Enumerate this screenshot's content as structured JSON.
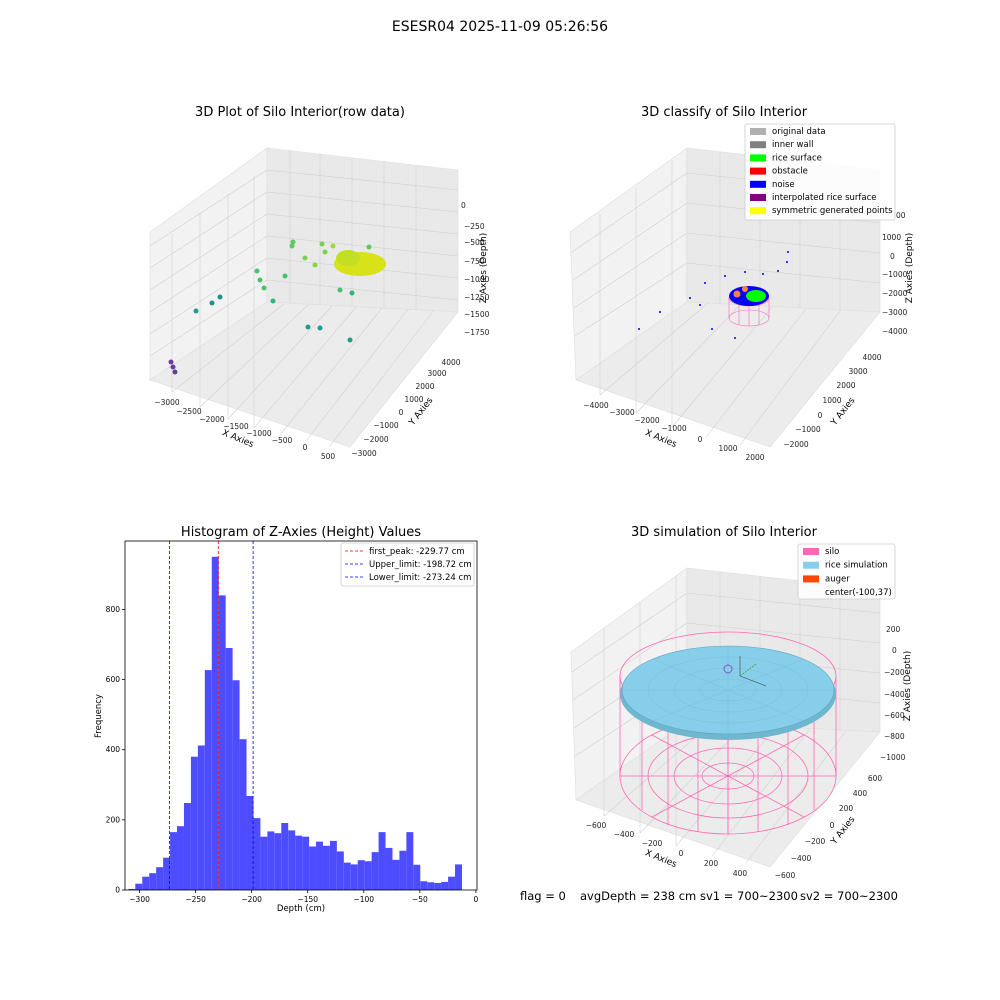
{
  "suptitle": "ESESR04 2025-11-09 05:26:56",
  "footer": {
    "flag": "flag = 0",
    "avg_depth": "avgDepth = 238 cm",
    "sv1": "sv1 = 700~2300",
    "sv2": "sv2 = 700~2300"
  },
  "chart_data": [
    {
      "type": "scatter",
      "projection": "3d",
      "title": "3D Plot of Silo Interior(row data)",
      "xlabel": "X Axies",
      "ylabel": "Y Axies",
      "zlabel": "Z Axies (Depth)",
      "x_ticks": [
        "−3000",
        "−2500",
        "−2000",
        "−1500",
        "−1000",
        "−500",
        "0",
        "500"
      ],
      "y_ticks": [
        "−3000",
        "−2000",
        "−1000",
        "0",
        "1000",
        "2000",
        "3000",
        "4000"
      ],
      "z_ticks": [
        "0",
        "−250",
        "−500",
        "−750",
        "−1000",
        "−1250",
        "−1500",
        "−1750"
      ],
      "colormap": "viridis",
      "grid": true
    },
    {
      "type": "scatter",
      "projection": "3d",
      "title": "3D classify of Silo Interior",
      "xlabel": "X Axies",
      "ylabel": "Y Axies",
      "zlabel": "Z Axies (Depth)",
      "x_ticks": [
        "−4000",
        "−3000",
        "−2000",
        "−1000",
        "0",
        "1000",
        "2000"
      ],
      "y_ticks": [
        "−2000",
        "−1000",
        "0",
        "1000",
        "2000",
        "3000",
        "4000"
      ],
      "z_ticks": [
        "1000",
        "0",
        "−1000",
        "−2000",
        "−3000",
        "−4000"
      ],
      "z_top_tick_partial": "00",
      "legend_position": "top-right",
      "legend": [
        {
          "label": "original data",
          "color": "#b0b0b0"
        },
        {
          "label": "inner wall",
          "color": "#808080"
        },
        {
          "label": "rice surface",
          "color": "#00ff00"
        },
        {
          "label": "obstacle",
          "color": "#ff0000"
        },
        {
          "label": "noise",
          "color": "#0000ff"
        },
        {
          "label": "interpolated rice surface",
          "color": "#800080"
        },
        {
          "label": "symmetric generated points",
          "color": "#ffff00"
        }
      ],
      "grid": true
    },
    {
      "type": "bar",
      "subtype": "histogram",
      "title": "Histogram of Z-Axies (Height) Values",
      "xlabel": "Depth (cm)",
      "ylabel": "Frequency",
      "xlim": [
        -313,
        1
      ],
      "ylim": [
        0,
        995
      ],
      "x_ticks": [
        -300,
        -250,
        -200,
        -150,
        -100,
        -50,
        0
      ],
      "y_ticks": [
        0,
        200,
        400,
        600,
        800
      ],
      "bin_start": -310,
      "bin_width": 6.2,
      "values": [
        3,
        18,
        38,
        48,
        65,
        92,
        165,
        182,
        248,
        380,
        412,
        627,
        950,
        840,
        690,
        598,
        430,
        268,
        205,
        152,
        167,
        162,
        191,
        170,
        155,
        152,
        124,
        138,
        126,
        140,
        110,
        78,
        73,
        85,
        82,
        108,
        165,
        120,
        86,
        112,
        165,
        72,
        25,
        22,
        20,
        23,
        38,
        73
      ],
      "bar_color": "#4d4dff",
      "vlines": [
        {
          "label": "first_peak: -229.77 cm",
          "x": -229.77,
          "color": "#ff0000"
        },
        {
          "label": "Upper_limit: -198.72 cm",
          "x": -198.72,
          "color": "#0000ff"
        },
        {
          "label": "Lower_limit: -273.24 cm",
          "x": -273.24,
          "color": "#0000ff"
        }
      ],
      "legend_position": "top-right",
      "grid": false
    },
    {
      "type": "scatter",
      "projection": "3d",
      "title": "3D simulation of Silo Interior",
      "xlabel": "X Axies",
      "ylabel": "Y Axies",
      "zlabel": "Z Axies (Depth)",
      "x_ticks": [
        "−600",
        "−400",
        "−200",
        "0",
        "200",
        "400"
      ],
      "y_ticks": [
        "−600",
        "−400",
        "−200",
        "0",
        "200",
        "400",
        "600"
      ],
      "z_ticks": [
        "200",
        "0",
        "−200",
        "−400",
        "−600",
        "−800",
        "−1000"
      ],
      "legend_position": "top-right",
      "legend": [
        {
          "label": "silo",
          "color": "#ff69b4"
        },
        {
          "label": "rice simulation",
          "color": "#87ceeb"
        },
        {
          "label": "auger",
          "color": "#ff4500"
        },
        {
          "label": "center(-100,37)",
          "color": "none"
        }
      ],
      "grid": true
    }
  ]
}
